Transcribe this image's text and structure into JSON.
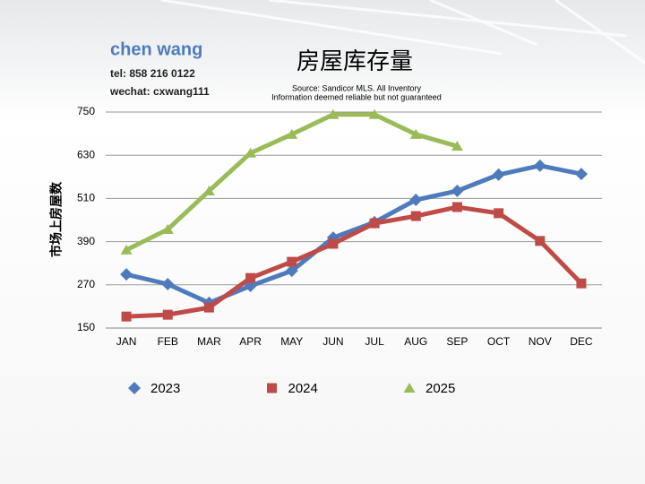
{
  "header": {
    "name": "chen wang",
    "tel": "tel: 858 216 0122",
    "wechat": "wechat: cxwang111"
  },
  "chart_data": {
    "type": "line",
    "title": "房屋库存量",
    "subtitle": [
      "Source: Sandicor MLS. All Inventory",
      "Information deemed reliable but not guaranteed"
    ],
    "y_label": "市场上房屋数",
    "categories": [
      "JAN",
      "FEB",
      "MAR",
      "APR",
      "MAY",
      "JUN",
      "JUL",
      "AUG",
      "SEP",
      "OCT",
      "NOV",
      "DEC"
    ],
    "series": [
      {
        "name": "2023",
        "color": "#4f7bbd",
        "marker": "diamond",
        "values": [
          299,
          272,
          220,
          267,
          309,
          401,
          444,
          506,
          531,
          576,
          601,
          578
        ]
      },
      {
        "name": "2024",
        "color": "#bf4b48",
        "marker": "square",
        "values": [
          182,
          187,
          207,
          289,
          334,
          384,
          441,
          461,
          486,
          469,
          392,
          274
        ]
      },
      {
        "name": "2025",
        "color": "#9bbb59",
        "marker": "triangle",
        "values": [
          367,
          424,
          531,
          636,
          688,
          743,
          743,
          688,
          655,
          null,
          null,
          null
        ]
      }
    ],
    "ylim": [
      150,
      750
    ],
    "yticks": [
      150,
      270,
      390,
      510,
      630,
      750
    ],
    "grid": true,
    "legend": "bottom"
  }
}
